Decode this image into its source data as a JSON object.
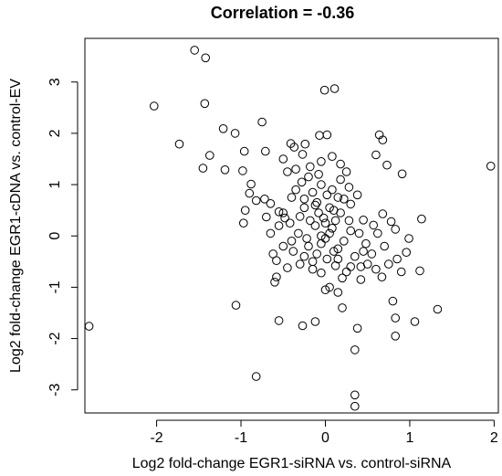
{
  "chart_data": {
    "type": "scatter",
    "title": "Correlation =  -0.36",
    "xlabel": "Log2 fold-change EGR1-siRNA vs. control-siRNA",
    "ylabel": "Log2 fold-change EGR1-cDNA vs. control-EV",
    "xlim": [
      -2.85,
      2.05
    ],
    "ylim": [
      -3.45,
      3.85
    ],
    "x_ticks": [
      -2,
      -1,
      0,
      1,
      2
    ],
    "y_ticks": [
      -3,
      -2,
      -1,
      0,
      1,
      2,
      3
    ],
    "x_tick_labels": [
      "-2",
      "-1",
      "0",
      "1",
      "2"
    ],
    "y_tick_labels": [
      "-3",
      "-2",
      "-1",
      "0",
      "1",
      "2",
      "3"
    ],
    "grid": false,
    "legend": "none",
    "marker": "open-circle",
    "points": [
      [
        -1.55,
        3.62
      ],
      [
        -1.42,
        3.47
      ],
      [
        -2.03,
        2.53
      ],
      [
        -1.43,
        2.58
      ],
      [
        -1.21,
        2.09
      ],
      [
        -1.07,
        2.0
      ],
      [
        -0.75,
        2.22
      ],
      [
        -1.73,
        1.79
      ],
      [
        -1.37,
        1.57
      ],
      [
        -1.45,
        1.32
      ],
      [
        -1.19,
        1.29
      ],
      [
        -0.96,
        1.65
      ],
      [
        -0.71,
        1.65
      ],
      [
        -0.41,
        1.8
      ],
      [
        -0.37,
        1.73
      ],
      [
        -0.27,
        1.59
      ],
      [
        -0.24,
        1.79
      ],
      [
        0.02,
        1.97
      ],
      [
        -0.07,
        1.96
      ],
      [
        -0.01,
        2.84
      ],
      [
        0.11,
        2.87
      ],
      [
        0.64,
        1.97
      ],
      [
        0.68,
        1.87
      ],
      [
        0.6,
        1.58
      ],
      [
        0.73,
        1.38
      ],
      [
        0.91,
        1.21
      ],
      [
        1.96,
        1.36
      ],
      [
        -0.98,
        1.27
      ],
      [
        -0.88,
        1.01
      ],
      [
        -0.9,
        0.83
      ],
      [
        -0.82,
        0.69
      ],
      [
        -0.72,
        0.72
      ],
      [
        -0.65,
        0.63
      ],
      [
        -0.95,
        0.5
      ],
      [
        -0.97,
        0.25
      ],
      [
        -0.7,
        0.37
      ],
      [
        -0.55,
        0.47
      ],
      [
        -1.06,
        -1.35
      ],
      [
        -0.82,
        -2.74
      ],
      [
        -2.8,
        -1.76
      ],
      [
        -0.6,
        -0.9
      ],
      [
        -0.58,
        -0.8
      ],
      [
        -0.55,
        -1.65
      ],
      [
        -0.27,
        -1.75
      ],
      [
        -0.12,
        -1.67
      ],
      [
        0.0,
        -1.05
      ],
      [
        0.05,
        -1.0
      ],
      [
        0.15,
        -1.1
      ],
      [
        0.2,
        -1.4
      ],
      [
        0.38,
        -1.8
      ],
      [
        0.35,
        -2.22
      ],
      [
        0.35,
        -3.1
      ],
      [
        0.35,
        -3.32
      ],
      [
        0.8,
        -1.27
      ],
      [
        0.83,
        -1.6
      ],
      [
        0.83,
        -1.95
      ],
      [
        1.06,
        -1.67
      ],
      [
        1.33,
        -1.43
      ],
      [
        1.12,
        -0.68
      ],
      [
        1.14,
        0.33
      ],
      [
        0.99,
        -0.05
      ],
      [
        0.96,
        -0.32
      ],
      [
        0.83,
        0.13
      ],
      [
        0.78,
        0.28
      ],
      [
        0.68,
        0.43
      ],
      [
        0.57,
        0.21
      ],
      [
        0.45,
        0.31
      ],
      [
        0.42,
        -0.85
      ],
      [
        0.67,
        -0.8
      ],
      [
        0.75,
        -0.55
      ],
      [
        0.55,
        -0.35
      ],
      [
        0.2,
        -0.82
      ],
      [
        0.12,
        -0.58
      ],
      [
        -0.05,
        -0.72
      ],
      [
        -0.15,
        -0.5
      ],
      [
        -0.3,
        -0.55
      ],
      [
        -0.45,
        -0.62
      ],
      [
        -0.58,
        -0.48
      ],
      [
        -0.38,
        -0.3
      ],
      [
        -0.2,
        -0.2
      ],
      [
        -0.32,
        0.05
      ],
      [
        -0.42,
        0.25
      ],
      [
        -0.5,
        0.45
      ],
      [
        -0.25,
        0.55
      ],
      [
        -0.1,
        0.65
      ],
      [
        0.05,
        0.55
      ],
      [
        0.18,
        0.45
      ],
      [
        0.28,
        0.3
      ],
      [
        0.3,
        0.1
      ],
      [
        0.22,
        -0.1
      ],
      [
        0.1,
        -0.3
      ],
      [
        -0.05,
        -0.15
      ],
      [
        -0.12,
        0.2
      ],
      [
        -0.02,
        0.35
      ],
      [
        0.08,
        0.15
      ],
      [
        -0.15,
        0.85
      ],
      [
        -0.05,
        1.0
      ],
      [
        0.08,
        0.9
      ],
      [
        0.18,
        1.1
      ],
      [
        0.28,
        0.95
      ],
      [
        -0.28,
        1.05
      ],
      [
        -0.35,
        0.9
      ],
      [
        -0.45,
        1.25
      ],
      [
        -0.5,
        1.5
      ],
      [
        -0.35,
        1.3
      ],
      [
        -0.18,
        1.35
      ],
      [
        -0.05,
        1.45
      ],
      [
        0.08,
        1.55
      ],
      [
        0.18,
        1.4
      ],
      [
        -0.2,
        1.15
      ],
      [
        0.15,
        0.75
      ],
      [
        0.3,
        0.62
      ],
      [
        0.38,
        0.8
      ],
      [
        0.25,
        1.25
      ],
      [
        -0.08,
        1.2
      ],
      [
        0.4,
        0.05
      ],
      [
        0.48,
        -0.15
      ],
      [
        0.5,
        -0.55
      ],
      [
        0.6,
        -0.65
      ],
      [
        0.3,
        -0.6
      ],
      [
        0.35,
        -0.4
      ],
      [
        0.15,
        -0.45
      ],
      [
        0.02,
        -0.45
      ],
      [
        -0.1,
        -0.35
      ],
      [
        -0.22,
        -0.05
      ],
      [
        -0.3,
        0.38
      ],
      [
        -0.18,
        0.3
      ],
      [
        -0.08,
        0.45
      ],
      [
        0.0,
        0.25
      ],
      [
        0.12,
        0.3
      ],
      [
        0.05,
        0.05
      ],
      [
        -0.05,
        0.0
      ],
      [
        0.0,
        -0.05
      ],
      [
        0.15,
        -0.25
      ],
      [
        -0.12,
        0.6
      ],
      [
        0.1,
        0.5
      ],
      [
        0.22,
        0.72
      ],
      [
        -0.25,
        0.72
      ],
      [
        -0.4,
        0.75
      ],
      [
        0.02,
        0.8
      ],
      [
        -0.48,
        0.35
      ],
      [
        -0.55,
        0.2
      ],
      [
        -0.65,
        0.05
      ],
      [
        -0.4,
        -0.1
      ],
      [
        -0.5,
        -0.2
      ],
      [
        -0.62,
        -0.35
      ],
      [
        -0.25,
        -0.4
      ],
      [
        -0.15,
        -0.65
      ],
      [
        0.25,
        -0.7
      ],
      [
        0.42,
        -0.6
      ],
      [
        0.45,
        -0.3
      ],
      [
        0.62,
        0.05
      ],
      [
        0.7,
        -0.2
      ],
      [
        0.85,
        -0.45
      ],
      [
        0.9,
        -0.7
      ]
    ]
  }
}
